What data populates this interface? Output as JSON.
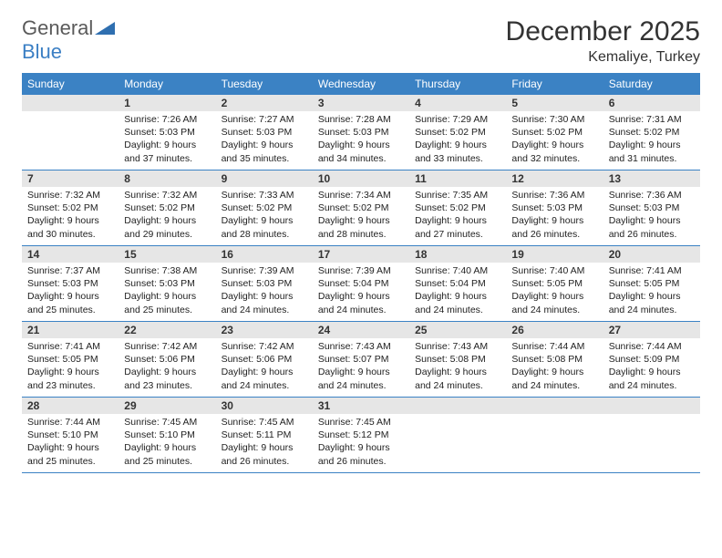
{
  "logo": {
    "text1": "General",
    "text2": "Blue"
  },
  "title": "December 2025",
  "location": "Kemaliye, Turkey",
  "colors": {
    "header_bg": "#3b82c4",
    "daynum_bg": "#e6e6e6",
    "border": "#3b82c4",
    "text": "#333333"
  },
  "day_names": [
    "Sunday",
    "Monday",
    "Tuesday",
    "Wednesday",
    "Thursday",
    "Friday",
    "Saturday"
  ],
  "weeks": [
    [
      {
        "n": "",
        "sr": "",
        "ss": "",
        "dl": ""
      },
      {
        "n": "1",
        "sr": "Sunrise: 7:26 AM",
        "ss": "Sunset: 5:03 PM",
        "dl": "Daylight: 9 hours and 37 minutes."
      },
      {
        "n": "2",
        "sr": "Sunrise: 7:27 AM",
        "ss": "Sunset: 5:03 PM",
        "dl": "Daylight: 9 hours and 35 minutes."
      },
      {
        "n": "3",
        "sr": "Sunrise: 7:28 AM",
        "ss": "Sunset: 5:03 PM",
        "dl": "Daylight: 9 hours and 34 minutes."
      },
      {
        "n": "4",
        "sr": "Sunrise: 7:29 AM",
        "ss": "Sunset: 5:02 PM",
        "dl": "Daylight: 9 hours and 33 minutes."
      },
      {
        "n": "5",
        "sr": "Sunrise: 7:30 AM",
        "ss": "Sunset: 5:02 PM",
        "dl": "Daylight: 9 hours and 32 minutes."
      },
      {
        "n": "6",
        "sr": "Sunrise: 7:31 AM",
        "ss": "Sunset: 5:02 PM",
        "dl": "Daylight: 9 hours and 31 minutes."
      }
    ],
    [
      {
        "n": "7",
        "sr": "Sunrise: 7:32 AM",
        "ss": "Sunset: 5:02 PM",
        "dl": "Daylight: 9 hours and 30 minutes."
      },
      {
        "n": "8",
        "sr": "Sunrise: 7:32 AM",
        "ss": "Sunset: 5:02 PM",
        "dl": "Daylight: 9 hours and 29 minutes."
      },
      {
        "n": "9",
        "sr": "Sunrise: 7:33 AM",
        "ss": "Sunset: 5:02 PM",
        "dl": "Daylight: 9 hours and 28 minutes."
      },
      {
        "n": "10",
        "sr": "Sunrise: 7:34 AM",
        "ss": "Sunset: 5:02 PM",
        "dl": "Daylight: 9 hours and 28 minutes."
      },
      {
        "n": "11",
        "sr": "Sunrise: 7:35 AM",
        "ss": "Sunset: 5:02 PM",
        "dl": "Daylight: 9 hours and 27 minutes."
      },
      {
        "n": "12",
        "sr": "Sunrise: 7:36 AM",
        "ss": "Sunset: 5:03 PM",
        "dl": "Daylight: 9 hours and 26 minutes."
      },
      {
        "n": "13",
        "sr": "Sunrise: 7:36 AM",
        "ss": "Sunset: 5:03 PM",
        "dl": "Daylight: 9 hours and 26 minutes."
      }
    ],
    [
      {
        "n": "14",
        "sr": "Sunrise: 7:37 AM",
        "ss": "Sunset: 5:03 PM",
        "dl": "Daylight: 9 hours and 25 minutes."
      },
      {
        "n": "15",
        "sr": "Sunrise: 7:38 AM",
        "ss": "Sunset: 5:03 PM",
        "dl": "Daylight: 9 hours and 25 minutes."
      },
      {
        "n": "16",
        "sr": "Sunrise: 7:39 AM",
        "ss": "Sunset: 5:03 PM",
        "dl": "Daylight: 9 hours and 24 minutes."
      },
      {
        "n": "17",
        "sr": "Sunrise: 7:39 AM",
        "ss": "Sunset: 5:04 PM",
        "dl": "Daylight: 9 hours and 24 minutes."
      },
      {
        "n": "18",
        "sr": "Sunrise: 7:40 AM",
        "ss": "Sunset: 5:04 PM",
        "dl": "Daylight: 9 hours and 24 minutes."
      },
      {
        "n": "19",
        "sr": "Sunrise: 7:40 AM",
        "ss": "Sunset: 5:05 PM",
        "dl": "Daylight: 9 hours and 24 minutes."
      },
      {
        "n": "20",
        "sr": "Sunrise: 7:41 AM",
        "ss": "Sunset: 5:05 PM",
        "dl": "Daylight: 9 hours and 24 minutes."
      }
    ],
    [
      {
        "n": "21",
        "sr": "Sunrise: 7:41 AM",
        "ss": "Sunset: 5:05 PM",
        "dl": "Daylight: 9 hours and 23 minutes."
      },
      {
        "n": "22",
        "sr": "Sunrise: 7:42 AM",
        "ss": "Sunset: 5:06 PM",
        "dl": "Daylight: 9 hours and 23 minutes."
      },
      {
        "n": "23",
        "sr": "Sunrise: 7:42 AM",
        "ss": "Sunset: 5:06 PM",
        "dl": "Daylight: 9 hours and 24 minutes."
      },
      {
        "n": "24",
        "sr": "Sunrise: 7:43 AM",
        "ss": "Sunset: 5:07 PM",
        "dl": "Daylight: 9 hours and 24 minutes."
      },
      {
        "n": "25",
        "sr": "Sunrise: 7:43 AM",
        "ss": "Sunset: 5:08 PM",
        "dl": "Daylight: 9 hours and 24 minutes."
      },
      {
        "n": "26",
        "sr": "Sunrise: 7:44 AM",
        "ss": "Sunset: 5:08 PM",
        "dl": "Daylight: 9 hours and 24 minutes."
      },
      {
        "n": "27",
        "sr": "Sunrise: 7:44 AM",
        "ss": "Sunset: 5:09 PM",
        "dl": "Daylight: 9 hours and 24 minutes."
      }
    ],
    [
      {
        "n": "28",
        "sr": "Sunrise: 7:44 AM",
        "ss": "Sunset: 5:10 PM",
        "dl": "Daylight: 9 hours and 25 minutes."
      },
      {
        "n": "29",
        "sr": "Sunrise: 7:45 AM",
        "ss": "Sunset: 5:10 PM",
        "dl": "Daylight: 9 hours and 25 minutes."
      },
      {
        "n": "30",
        "sr": "Sunrise: 7:45 AM",
        "ss": "Sunset: 5:11 PM",
        "dl": "Daylight: 9 hours and 26 minutes."
      },
      {
        "n": "31",
        "sr": "Sunrise: 7:45 AM",
        "ss": "Sunset: 5:12 PM",
        "dl": "Daylight: 9 hours and 26 minutes."
      },
      {
        "n": "",
        "sr": "",
        "ss": "",
        "dl": ""
      },
      {
        "n": "",
        "sr": "",
        "ss": "",
        "dl": ""
      },
      {
        "n": "",
        "sr": "",
        "ss": "",
        "dl": ""
      }
    ]
  ]
}
